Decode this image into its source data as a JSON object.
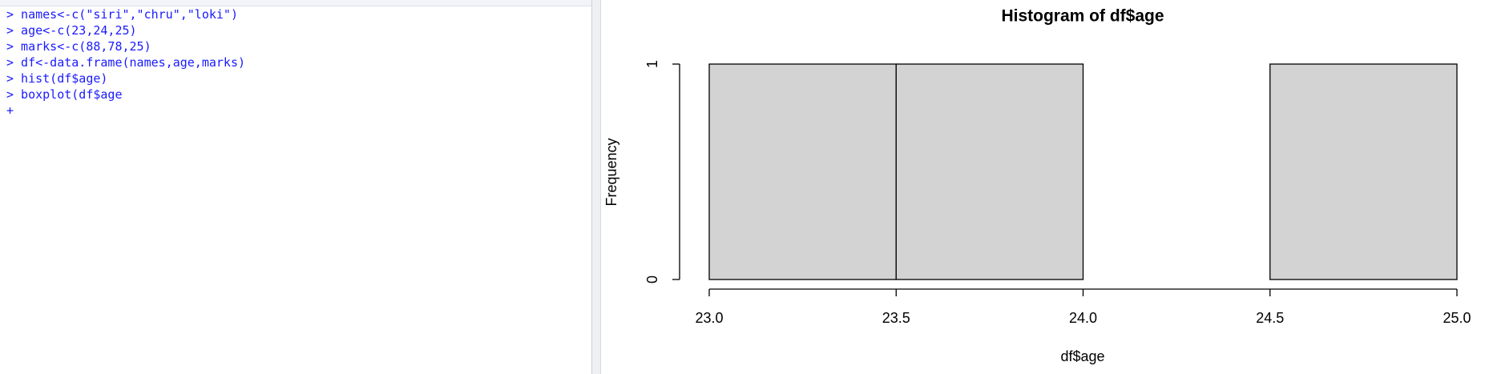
{
  "console": {
    "lines": [
      "> names<-c(\"siri\",\"chru\",\"loki\")",
      "> age<-c(23,24,25)",
      "> marks<-c(88,78,25)",
      "> df<-data.frame(names,age,marks)",
      "> hist(df$age)",
      "> boxplot(df$age",
      "+"
    ]
  },
  "chart_data": {
    "type": "histogram",
    "title": "Histogram of df$age",
    "x_label": "df$age",
    "y_label": "Frequency",
    "bins": [
      23,
      23.5,
      24,
      24.5,
      25
    ],
    "values": [
      1,
      1,
      0,
      1
    ],
    "color": "#d3d3d3",
    "xlim": [
      23,
      25
    ],
    "xticks": [
      {
        "value": 23,
        "label": "23.0"
      },
      {
        "value": 23.5,
        "label": "23.5"
      },
      {
        "value": 24,
        "label": "24.0"
      },
      {
        "value": 24.5,
        "label": "24.5"
      },
      {
        "value": 25,
        "label": "25.0"
      }
    ],
    "ylim": [
      0,
      1
    ],
    "yticks": [
      0,
      1
    ]
  }
}
